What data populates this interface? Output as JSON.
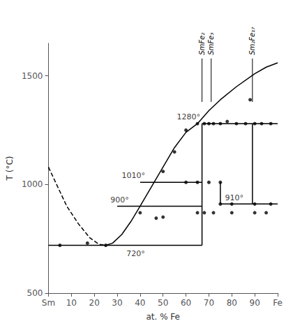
{
  "chart_data": {
    "type": "line",
    "xlabel": "at. % Fe",
    "ylabel": "T (°C)",
    "xlim": [
      0,
      100
    ],
    "ylim": [
      500,
      1650
    ],
    "xticks": [
      {
        "value": 0,
        "label": "Sm"
      },
      10,
      20,
      30,
      40,
      50,
      60,
      70,
      80,
      90,
      {
        "value": 100,
        "label": "Fe"
      }
    ],
    "yticks": [
      500,
      1000,
      1500
    ],
    "grid": false,
    "series": [
      {
        "type": "line",
        "line_style": "dashed",
        "color": "#000000",
        "x": [
          0,
          4,
          8,
          13,
          18,
          22,
          25
        ],
        "values": [
          1080,
          990,
          900,
          820,
          755,
          725,
          720
        ]
      },
      {
        "type": "line",
        "line_style": "solid",
        "color": "#000000",
        "x": [
          25,
          28,
          32,
          36,
          40,
          45,
          50,
          55,
          60,
          65,
          70,
          75,
          82,
          90,
          95,
          100
        ],
        "values": [
          720,
          730,
          770,
          830,
          900,
          990,
          1080,
          1170,
          1240,
          1280,
          1340,
          1390,
          1450,
          1510,
          1540,
          1560
        ]
      },
      {
        "type": "line",
        "line_style": "solid",
        "color": "#000000",
        "x": [
          0,
          67
        ],
        "values": [
          720,
          720
        ]
      },
      {
        "type": "line",
        "line_style": "solid",
        "color": "#000000",
        "x": [
          40,
          67
        ],
        "values": [
          1010,
          1010
        ]
      },
      {
        "type": "line",
        "line_style": "solid",
        "color": "#000000",
        "x": [
          30,
          67
        ],
        "values": [
          900,
          900
        ]
      },
      {
        "type": "line",
        "line_style": "solid",
        "color": "#000000",
        "x": [
          67,
          100
        ],
        "values": [
          1280,
          1280
        ]
      },
      {
        "type": "line",
        "line_style": "solid",
        "color": "#000000",
        "x": [
          75,
          100
        ],
        "values": [
          910,
          910
        ]
      },
      {
        "type": "line",
        "line_style": "solid",
        "color": "#000000",
        "x": [
          67,
          67
        ],
        "values": [
          720,
          1280
        ]
      },
      {
        "type": "line",
        "line_style": "solid",
        "color": "#000000",
        "x": [
          75,
          75
        ],
        "values": [
          910,
          1010
        ]
      },
      {
        "type": "line",
        "line_style": "solid",
        "color": "#000000",
        "x": [
          89,
          89
        ],
        "values": [
          910,
          1280
        ]
      },
      {
        "type": "line",
        "line_style": "solid",
        "color": "#000000",
        "x": [
          67,
          67
        ],
        "values": [
          1380,
          1580
        ],
        "label": "SmFe₂"
      },
      {
        "type": "line",
        "line_style": "solid",
        "color": "#000000",
        "x": [
          71,
          71
        ],
        "values": [
          1380,
          1580
        ],
        "label": "SmFe₃"
      },
      {
        "type": "line",
        "line_style": "solid",
        "color": "#000000",
        "x": [
          89,
          89
        ],
        "values": [
          1380,
          1580
        ],
        "label": "Sm₂Fe₁₇"
      },
      {
        "type": "scatter",
        "marker": "circle",
        "color": "#000000",
        "x": [
          5,
          17,
          25,
          40,
          47,
          50,
          55,
          60,
          65,
          68,
          70,
          72,
          75,
          78,
          82,
          86,
          90,
          93,
          97,
          60,
          65,
          70,
          75,
          50,
          65,
          68,
          72,
          80,
          90,
          95,
          75,
          80,
          90,
          97,
          88
        ],
        "values": [
          720,
          730,
          720,
          870,
          845,
          1060,
          1150,
          1250,
          1280,
          1280,
          1280,
          1280,
          1280,
          1290,
          1280,
          1280,
          1280,
          1280,
          1280,
          1010,
          1010,
          1010,
          1010,
          850,
          870,
          870,
          870,
          870,
          870,
          870,
          910,
          910,
          910,
          910,
          1390
        ]
      }
    ],
    "annotations": [
      {
        "text": "720°",
        "x": 34,
        "y": 700
      },
      {
        "text": "1010°",
        "x": 32,
        "y": 1022
      },
      {
        "text": "900°",
        "x": 27,
        "y": 912
      },
      {
        "text": "1280°",
        "x": 56,
        "y": 1293
      },
      {
        "text": "910°",
        "x": 77,
        "y": 922
      }
    ]
  }
}
